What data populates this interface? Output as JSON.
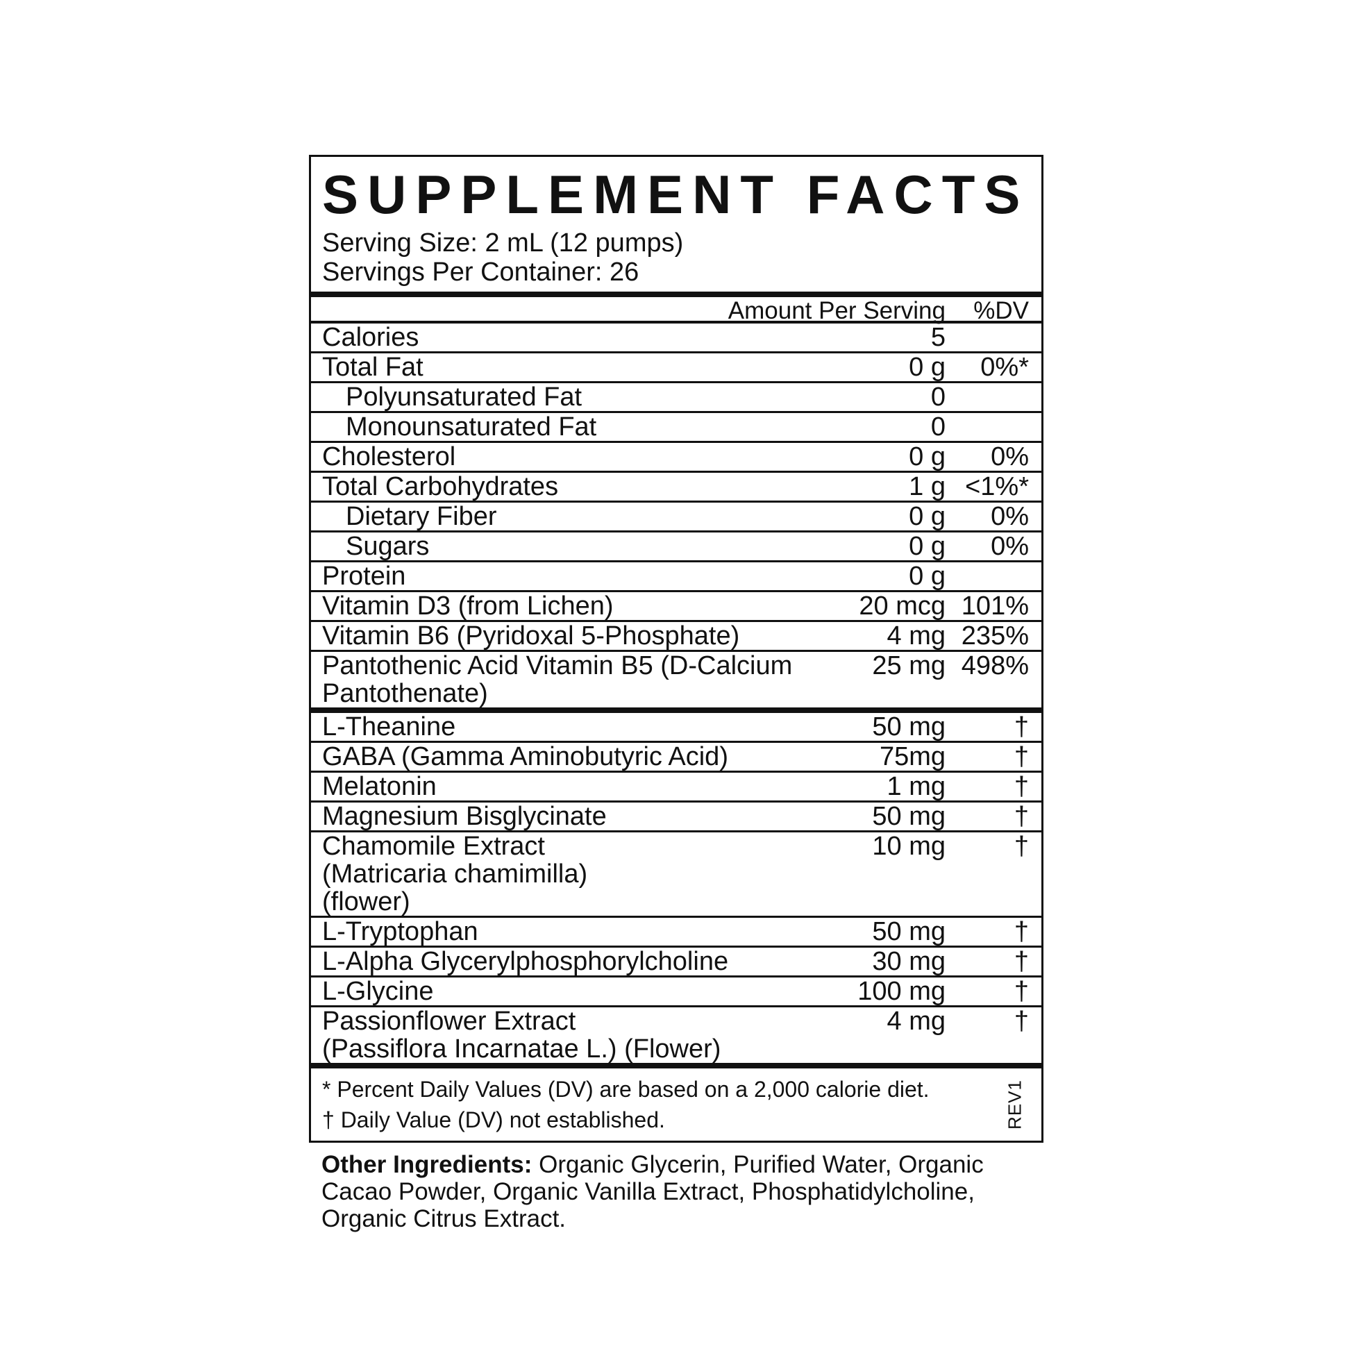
{
  "label": {
    "title": "SUPPLEMENT FACTS",
    "serving_size": "Serving Size: 2 mL (12 pumps)",
    "servings_per_container": "Servings Per Container: 26",
    "columns": {
      "amount": "Amount Per Serving",
      "dv": "%DV"
    },
    "rows": [
      {
        "name": [
          "Calories"
        ],
        "amount": "5",
        "dv": "",
        "indent": false
      },
      {
        "name": [
          "Total Fat"
        ],
        "amount": "0 g",
        "dv": "0%*",
        "indent": false
      },
      {
        "name": [
          "Polyunsaturated Fat"
        ],
        "amount": "0",
        "dv": "",
        "indent": true
      },
      {
        "name": [
          "Monounsaturated Fat"
        ],
        "amount": "0",
        "dv": "",
        "indent": true
      },
      {
        "name": [
          "Cholesterol"
        ],
        "amount": "0 g",
        "dv": "0%",
        "indent": false
      },
      {
        "name": [
          "Total Carbohydrates"
        ],
        "amount": "1 g",
        "dv": "<1%*",
        "indent": false
      },
      {
        "name": [
          "Dietary Fiber"
        ],
        "amount": "0 g",
        "dv": "0%",
        "indent": true
      },
      {
        "name": [
          "Sugars"
        ],
        "amount": "0 g",
        "dv": "0%",
        "indent": true
      },
      {
        "name": [
          "Protein"
        ],
        "amount": "0 g",
        "dv": "",
        "indent": false
      },
      {
        "name": [
          "Vitamin D3 (from Lichen)"
        ],
        "amount": "20 mcg",
        "dv": "101%",
        "indent": false
      },
      {
        "name": [
          "Vitamin B6 (Pyridoxal 5-Phosphate)"
        ],
        "amount": "4 mg",
        "dv": "235%",
        "indent": false
      },
      {
        "name": [
          "Pantothenic Acid Vitamin B5 (D-Calcium",
          "Pantothenate)"
        ],
        "amount": "25 mg",
        "dv": "498%",
        "indent": false
      },
      {
        "name": [
          "L-Theanine"
        ],
        "amount": "50 mg",
        "dv": "†",
        "indent": false,
        "section_start": true
      },
      {
        "name": [
          "GABA (Gamma Aminobutyric Acid)"
        ],
        "amount": "75mg",
        "dv": "†",
        "indent": false
      },
      {
        "name": [
          "Melatonin"
        ],
        "amount": "1 mg",
        "dv": "†",
        "indent": false
      },
      {
        "name": [
          "Magnesium Bisglycinate"
        ],
        "amount": "50 mg",
        "dv": "†",
        "indent": false
      },
      {
        "name": [
          "Chamomile Extract",
          "(Matricaria chamimilla)",
          "(flower)"
        ],
        "amount": "10 mg",
        "dv": "†",
        "indent": false
      },
      {
        "name": [
          "L-Tryptophan"
        ],
        "amount": "50 mg",
        "dv": "†",
        "indent": false
      },
      {
        "name": [
          "L-Alpha Glycerylphosphorylcholine"
        ],
        "amount": "30 mg",
        "dv": "†",
        "indent": false
      },
      {
        "name": [
          "L-Glycine"
        ],
        "amount": "100 mg",
        "dv": "†",
        "indent": false
      },
      {
        "name": [
          "Passionflower Extract",
          "(Passiflora Incarnatae L.) (Flower)"
        ],
        "amount": "4 mg",
        "dv": "†",
        "indent": false
      }
    ],
    "footnotes": [
      "* Percent Daily Values (DV) are based on a 2,000 calorie diet.",
      "† Daily Value (DV) not established."
    ],
    "rev": "REV1",
    "other_ingredients": {
      "bold": "Other Ingredients:",
      "line1_rest": " Organic Glycerin, Purified Water, Organic",
      "line2": "Cacao Powder, Organic Vanilla Extract, Phosphatidylcholine,",
      "line3": "Organic Citrus Extract."
    },
    "colors": {
      "ink": "#111111",
      "background": "#ffffff"
    }
  }
}
